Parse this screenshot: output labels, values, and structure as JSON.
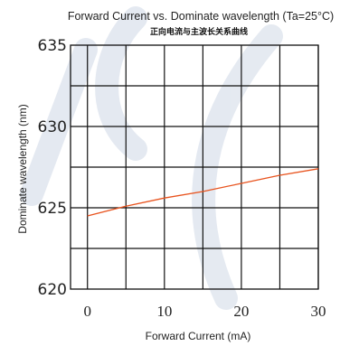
{
  "chart_data": {
    "type": "line",
    "title": "Forward Current vs. Dominate wavelength (Ta=25°C)",
    "subtitle": "正向电流与主波长关系曲线",
    "xlabel": "Forward  Current  (mA)",
    "ylabel": "Dominate wavelength (nm)",
    "x": [
      0,
      5,
      10,
      15,
      20,
      25,
      30
    ],
    "series": [
      {
        "values": [
          624.5,
          625.1,
          625.6,
          626.0,
          626.5,
          627.0,
          627.4
        ]
      }
    ],
    "xlim": [
      -2.2,
      30
    ],
    "ylim": [
      620,
      635
    ],
    "xticks": [
      0,
      10,
      20,
      30
    ],
    "xtick_labels": [
      "0",
      "10",
      "20",
      "30"
    ],
    "yticks": [
      620,
      625,
      630,
      635
    ],
    "ytick_labels": [
      "620",
      "625",
      "630",
      "635"
    ],
    "grid": true,
    "colors": {
      "line": "#e8531e",
      "grid": "#111111",
      "watermark": "#cfd8e6"
    }
  }
}
